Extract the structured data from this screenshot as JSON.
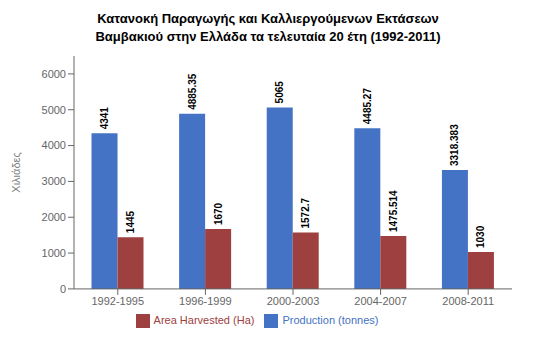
{
  "chart_data": {
    "type": "bar",
    "title": "Κατανοκή Παραγωγής και Καλλιεργούμενων Εκτάσεων\nΒαμβακιού στην Ελλάδα τα τελευταία 20 έτη (1992-2011)",
    "ylabel": "Χιλιάδες",
    "categories": [
      "1992-1995",
      "1996-1999",
      "2000-2003",
      "2004-2007",
      "2008-2011"
    ],
    "series": [
      {
        "name": "Production (tonnes)",
        "color": "#4472C4",
        "values": [
          4341,
          4885.35,
          5065,
          4485.27,
          3318.383
        ]
      },
      {
        "name": "Area Harvested (Ha)",
        "color": "#9E4040",
        "values": [
          1445,
          1670,
          1572.7,
          1475.514,
          1030
        ]
      }
    ],
    "ylim": [
      0,
      6500
    ],
    "yticks": [
      0,
      1000,
      2000,
      3000,
      4000,
      5000,
      6000
    ],
    "grid": false,
    "legend": "bottom",
    "data_labels": true
  }
}
